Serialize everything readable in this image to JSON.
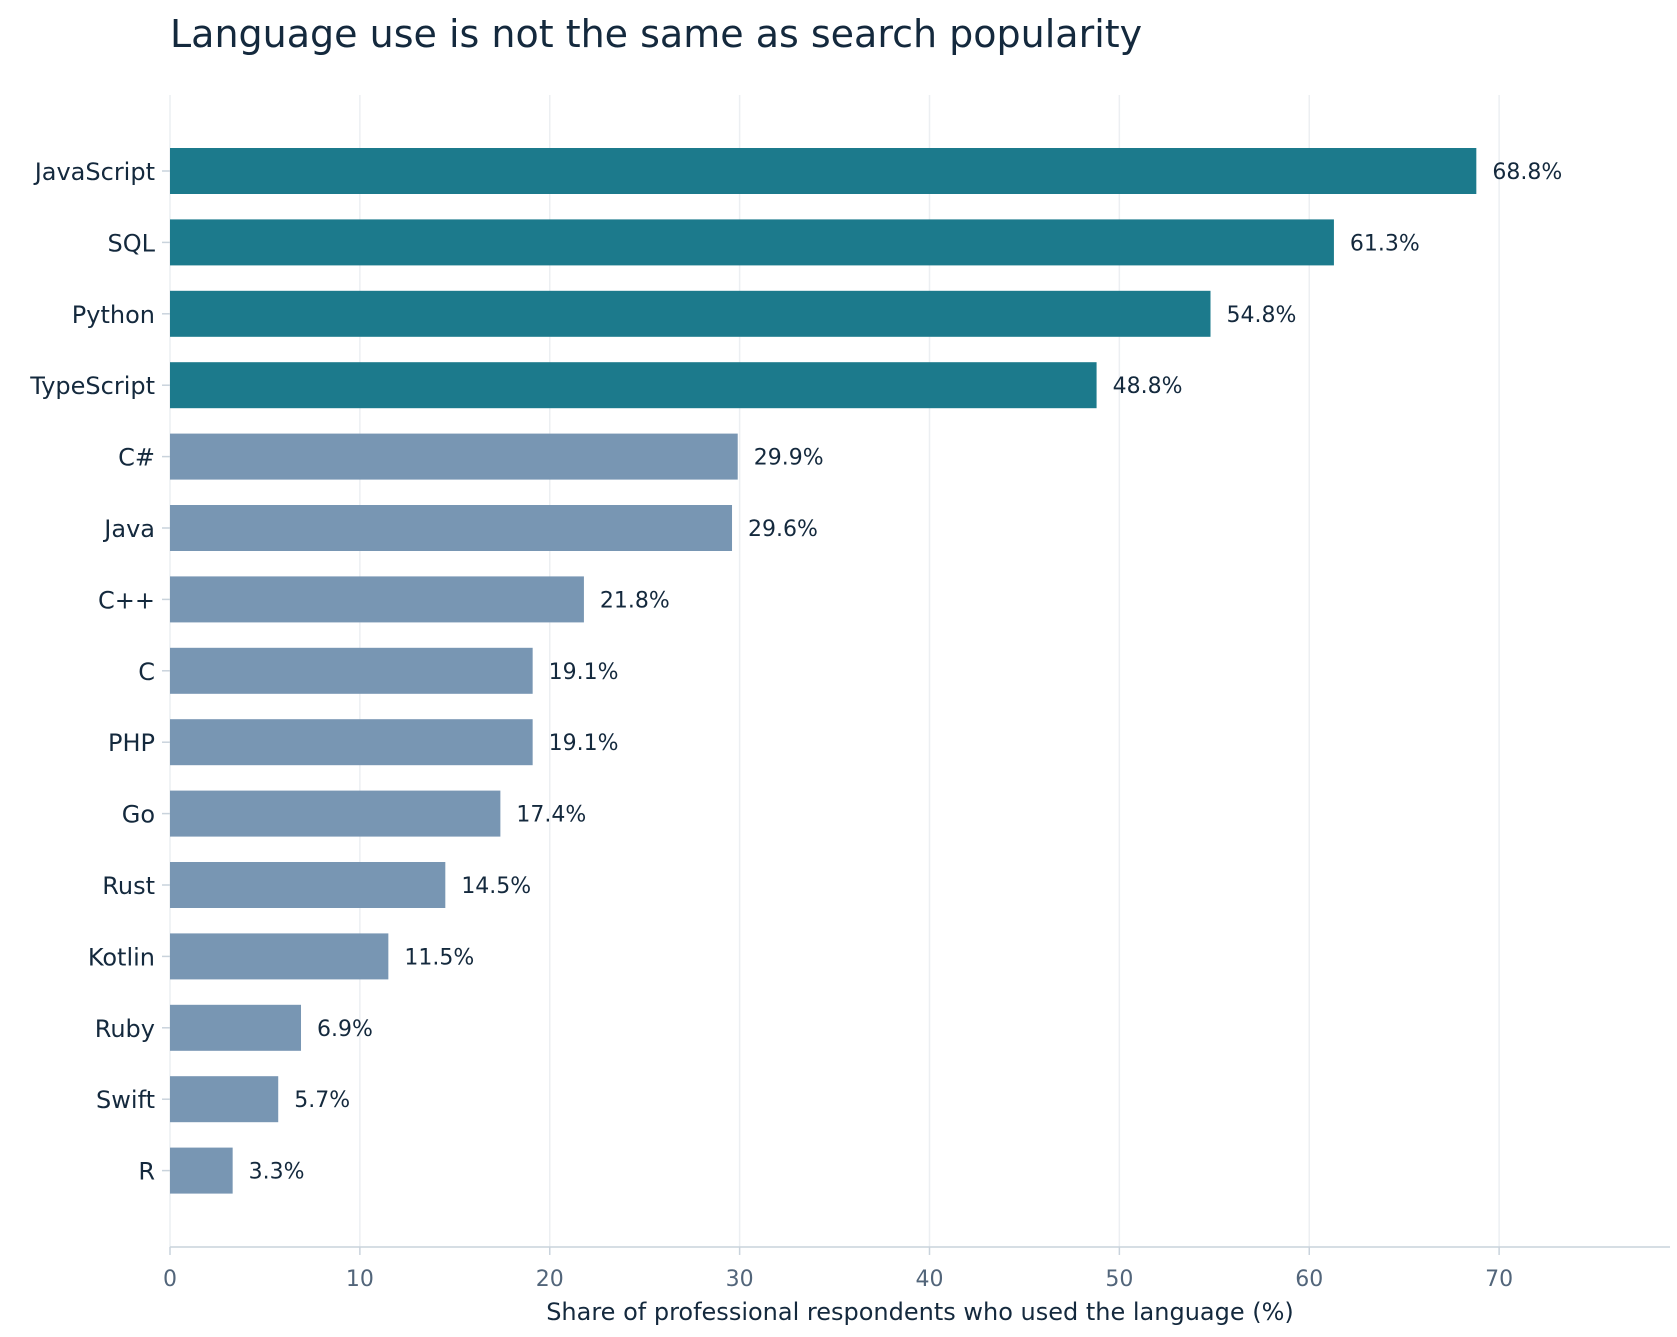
{
  "chart_data": {
    "type": "bar",
    "orientation": "horizontal",
    "title": "Language use is not the same as search popularity",
    "xlabel": "Share of professional respondents who used the language (%)",
    "ylabel": "",
    "xlim": [
      0,
      79
    ],
    "xticks": [
      "0",
      "10",
      "20",
      "30",
      "40",
      "50",
      "60",
      "70"
    ],
    "grid": "vertical",
    "categories": [
      "JavaScript",
      "SQL",
      "Python",
      "TypeScript",
      "C#",
      "Java",
      "C++",
      "C",
      "PHP",
      "Go",
      "Rust",
      "Kotlin",
      "Ruby",
      "Swift",
      "R"
    ],
    "values": [
      68.8,
      61.3,
      54.8,
      48.8,
      29.9,
      29.6,
      21.8,
      19.1,
      19.1,
      17.4,
      14.5,
      11.5,
      6.9,
      5.7,
      3.3
    ],
    "labels": [
      "68.8%",
      "61.3%",
      "54.8%",
      "48.8%",
      "29.9%",
      "29.6%",
      "21.8%",
      "19.1%",
      "19.1%",
      "17.4%",
      "14.5%",
      "11.5%",
      "6.9%",
      "5.7%",
      "3.3%"
    ],
    "highlight_count": 4,
    "colors": {
      "highlight": "#1c7a8c",
      "default": "#7896b3",
      "text": "#14293d",
      "tick": "#52657a",
      "grid": "#eceff2",
      "axis": "#c9d3dc"
    }
  }
}
